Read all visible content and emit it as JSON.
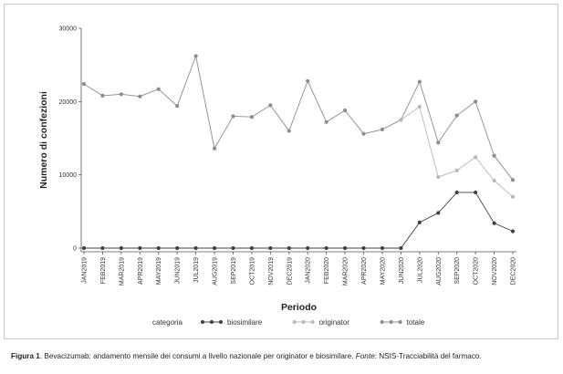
{
  "caption": {
    "label": "Figura 1",
    "text": ". Bevacizumab: andamento mensile dei consumi a livello nazionale per originator e biosimilare. ",
    "source_label": "Fonte",
    "source_text": ": NSIS-Tracciabilità del farmaco."
  },
  "chart_data": {
    "type": "line",
    "xlabel": "Periodo",
    "ylabel": "Numero di confezioni",
    "ylim": [
      0,
      30000
    ],
    "yticks": [
      0,
      10000,
      20000,
      30000
    ],
    "grid": false,
    "legend": {
      "title": "categoria",
      "placement": "bottom"
    },
    "categories": [
      "JAN2019",
      "FEB2019",
      "MAR2019",
      "APR2019",
      "MAY2019",
      "JUN2019",
      "JUL2019",
      "AUG2019",
      "SEP2019",
      "OCT2019",
      "NOV2019",
      "DEC2019",
      "JAN2020",
      "FEB2020",
      "MAR2020",
      "APR2020",
      "MAY2020",
      "JUN2020",
      "JUL2020",
      "AUG2020",
      "SEP2020",
      "OCT2020",
      "NOV2020",
      "DEC2020"
    ],
    "series": [
      {
        "name": "biosimilare",
        "color": "#404040",
        "values": [
          0,
          0,
          0,
          0,
          0,
          0,
          0,
          0,
          0,
          0,
          0,
          0,
          0,
          0,
          0,
          0,
          0,
          0,
          3500,
          4800,
          7600,
          7600,
          3400,
          2300
        ]
      },
      {
        "name": "originator",
        "color": "#b8b8b8",
        "values": [
          null,
          null,
          null,
          null,
          null,
          null,
          null,
          null,
          null,
          null,
          null,
          null,
          null,
          null,
          null,
          null,
          null,
          17500,
          19300,
          9700,
          10600,
          12400,
          9200,
          7000
        ]
      },
      {
        "name": "totale",
        "color": "#8c8c8c",
        "values": [
          22400,
          20800,
          21000,
          20700,
          21700,
          19400,
          26200,
          13600,
          18000,
          17900,
          19500,
          16000,
          22800,
          17200,
          18800,
          15600,
          16200,
          17500,
          22700,
          14400,
          18100,
          20000,
          12600,
          9300
        ]
      }
    ]
  }
}
